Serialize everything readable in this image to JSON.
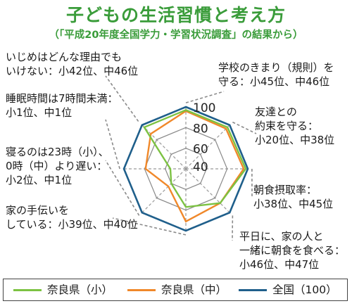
{
  "title": "子どもの生活習慣と考え方",
  "subtitle": "（「平成20年度全国学力・学習状況調査」の結果から）",
  "annotations": [
    {
      "id": "ijime",
      "lines": [
        "いじめはどんな理由でも",
        "いけない：小42位、中46位"
      ]
    },
    {
      "id": "suimin",
      "lines": [
        "睡眠時間は7時間未満：",
        "小1位、中1位"
      ]
    },
    {
      "id": "neru",
      "lines": [
        "寝るのは23時（小）、",
        "0時（中）より遅い：",
        "小2位、中1位"
      ]
    },
    {
      "id": "tetsudai",
      "lines": [
        "家の手伝いを",
        "している：小39位、中40位"
      ]
    },
    {
      "id": "gakko",
      "lines": [
        "学校のきまり（規則）を",
        "守る：小45位、中46位"
      ]
    },
    {
      "id": "yakusoku",
      "lines": [
        "友達との",
        "約束を守る：",
        "小20位、中38位"
      ]
    },
    {
      "id": "choshoku",
      "lines": [
        "朝食摂取率：",
        "小38位、中45位"
      ]
    },
    {
      "id": "heijitsu",
      "lines": [
        "平日に、家の人と",
        "一緒に朝食を食べる：",
        "小46位、中47位"
      ]
    }
  ],
  "chart_data": {
    "type": "radar",
    "axes": [
      "学校のきまり（規則）を守る",
      "友達との約束を守る",
      "朝食摂取率",
      "平日に、家の人と一緒に朝食を食べる",
      "家の手伝いをしている",
      "寝るのは23時（小）、0時（中）より遅い",
      "睡眠時間は7時間未満",
      "いじめはどんな理由でもいけない"
    ],
    "rlim": [
      40,
      100
    ],
    "ticks": [
      40,
      60,
      80,
      100
    ],
    "tick_labels": [
      "40",
      "60",
      "80",
      "100"
    ],
    "series": [
      {
        "name": "奈良県（小）",
        "color": "#7cc242",
        "values": [
          97,
          97,
          98,
          87,
          77,
          60,
          55,
          97
        ]
      },
      {
        "name": "奈良県（中）",
        "color": "#f0882a",
        "values": [
          96,
          95,
          96,
          87,
          91,
          64,
          79,
          88
        ]
      },
      {
        "name": "全国（100）",
        "color": "#1f5f8b",
        "values": [
          100,
          100,
          100,
          100,
          100,
          100,
          100,
          100
        ]
      }
    ],
    "grid": true,
    "legend": "bottom"
  }
}
